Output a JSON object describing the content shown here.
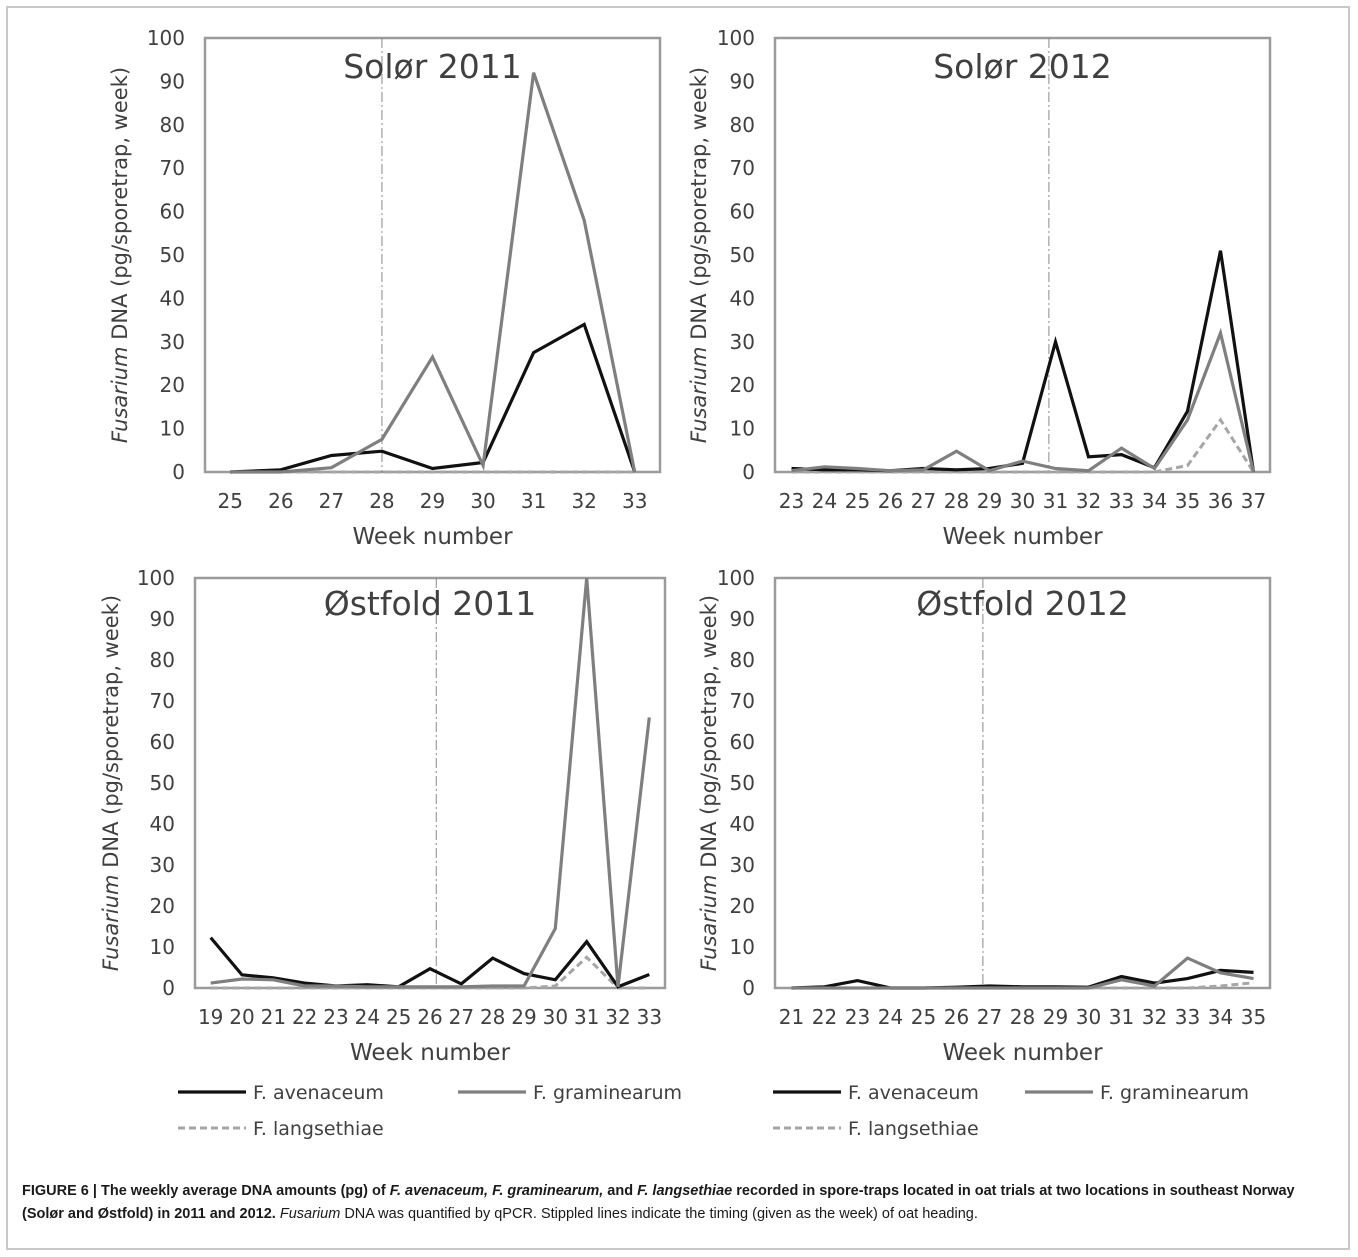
{
  "colors": {
    "avenaceum": "#111111",
    "graminearum": "#7f7f7f",
    "langsethiae": "#a6a6a6",
    "frame": "#9b9b9b",
    "text": "#404040"
  },
  "yaxis": {
    "label_italic": "Fusarium",
    "label_rest": " DNA (pg/sporetrap, week)"
  },
  "xaxis": {
    "label": "Week number"
  },
  "legend": [
    {
      "label": "F. avenaceum",
      "series": "avenaceum"
    },
    {
      "label": "F. graminearum",
      "series": "graminearum"
    },
    {
      "label": "F. langsethiae",
      "series": "langsethiae"
    }
  ],
  "chart_data": [
    {
      "type": "line",
      "title": "Solør 2011",
      "xlabel": "Week number",
      "ylabel": "Fusarium DNA (pg/sporetrap, week)",
      "ylim": [
        0,
        100
      ],
      "yticks": [
        0,
        10,
        20,
        30,
        40,
        50,
        60,
        70,
        80,
        90,
        100
      ],
      "categories": [
        "25",
        "26",
        "27",
        "28",
        "29",
        "30",
        "31",
        "32",
        "33"
      ],
      "heading_week": 28,
      "series": [
        {
          "name": "F. avenaceum",
          "key": "avenaceum",
          "values": [
            0,
            0.5,
            3.8,
            4.8,
            0.8,
            2.2,
            27.5,
            34,
            0
          ]
        },
        {
          "name": "F. graminearum",
          "key": "graminearum",
          "values": [
            0,
            0,
            1,
            7.5,
            26.5,
            1.5,
            92,
            58,
            0
          ]
        },
        {
          "name": "F. langsethiae",
          "key": "langsethiae",
          "values": [
            0,
            0,
            0,
            0,
            0,
            0,
            0,
            0,
            0
          ]
        }
      ]
    },
    {
      "type": "line",
      "title": "Solør 2012",
      "xlabel": "Week number",
      "ylabel": "Fusarium DNA (pg/sporetrap, week)",
      "ylim": [
        0,
        100
      ],
      "yticks": [
        0,
        10,
        20,
        30,
        40,
        50,
        60,
        70,
        80,
        90,
        100
      ],
      "categories": [
        "23",
        "24",
        "25",
        "26",
        "27",
        "28",
        "29",
        "30",
        "31",
        "32",
        "33",
        "34",
        "35",
        "36",
        "37"
      ],
      "heading_week": 30.8,
      "series": [
        {
          "name": "F. avenaceum",
          "key": "avenaceum",
          "values": [
            0.8,
            0.5,
            0.5,
            0.3,
            0.8,
            0.5,
            0.8,
            2,
            30,
            3.5,
            4,
            1,
            14,
            51,
            0
          ]
        },
        {
          "name": "F. graminearum",
          "key": "graminearum",
          "values": [
            0.3,
            1.2,
            0.8,
            0.3,
            0.5,
            4.8,
            0.3,
            2.5,
            0.8,
            0.3,
            5.5,
            0.8,
            12,
            32,
            0
          ]
        },
        {
          "name": "F. langsethiae",
          "key": "langsethiae",
          "values": [
            0,
            0,
            0,
            0,
            0,
            0,
            0,
            0,
            0,
            0,
            0,
            0,
            1.5,
            12,
            0
          ]
        }
      ]
    },
    {
      "type": "line",
      "title": "Østfold 2011",
      "xlabel": "Week number",
      "ylabel": "Fusarium DNA (pg/sporetrap, week)",
      "ylim": [
        0,
        100
      ],
      "yticks": [
        0,
        10,
        20,
        30,
        40,
        50,
        60,
        70,
        80,
        90,
        100
      ],
      "categories": [
        "19",
        "20",
        "21",
        "22",
        "23",
        "24",
        "25",
        "26",
        "27",
        "28",
        "29",
        "30",
        "31",
        "32",
        "33"
      ],
      "heading_week": 26.2,
      "series": [
        {
          "name": "F. avenaceum",
          "key": "avenaceum",
          "values": [
            12.3,
            3.2,
            2.5,
            1.2,
            0.5,
            0.8,
            0.3,
            4.7,
            1,
            7.3,
            3.5,
            2,
            11.3,
            0.3,
            3.3
          ]
        },
        {
          "name": "F. graminearum",
          "key": "graminearum",
          "values": [
            1.2,
            2.2,
            2,
            0.5,
            0.5,
            0.3,
            0.3,
            0.3,
            0.3,
            0.5,
            0.5,
            14.5,
            100,
            0.3,
            66
          ]
        },
        {
          "name": "F. langsethiae",
          "key": "langsethiae",
          "values": [
            0,
            0,
            0,
            0,
            0,
            0,
            0,
            0,
            0,
            0,
            0,
            0.5,
            7.5,
            0,
            0
          ]
        }
      ]
    },
    {
      "type": "line",
      "title": "Østfold 2012",
      "xlabel": "Week number",
      "ylabel": "Fusarium DNA (pg/sporetrap, week)",
      "ylim": [
        0,
        100
      ],
      "yticks": [
        0,
        10,
        20,
        30,
        40,
        50,
        60,
        70,
        80,
        90,
        100
      ],
      "categories": [
        "21",
        "22",
        "23",
        "24",
        "25",
        "26",
        "27",
        "28",
        "29",
        "30",
        "31",
        "32",
        "33",
        "34",
        "35"
      ],
      "heading_week": 26.8,
      "series": [
        {
          "name": "F. avenaceum",
          "key": "avenaceum",
          "values": [
            0,
            0.3,
            1.8,
            0,
            0,
            0.2,
            0.5,
            0.3,
            0.3,
            0.2,
            2.8,
            1.2,
            2.3,
            4.3,
            3.8
          ]
        },
        {
          "name": "F. graminearum",
          "key": "graminearum",
          "values": [
            0,
            0,
            0,
            0,
            0,
            0,
            0,
            0,
            0,
            0,
            2,
            0.5,
            7.3,
            3.7,
            2.3
          ]
        },
        {
          "name": "F. langsethiae",
          "key": "langsethiae",
          "values": [
            0,
            0,
            0,
            0,
            0,
            0,
            0,
            0,
            0,
            0,
            0,
            0,
            0,
            0.5,
            1.3
          ]
        }
      ]
    }
  ],
  "caption": {
    "lead": "FIGURE 6 | The weekly average DNA amounts (pg) of ",
    "sp1": "F. avenaceum, F. graminearum,",
    "mid": " and ",
    "sp2": "F. langsethiae",
    "lead_end": " recorded in spore-traps located in oat trials at two locations in southeast Norway (Solør and Østfold) in 2011 and 2012.",
    "ital": "Fusarium",
    "rest": " DNA was quantified by qPCR. Stippled lines indicate the timing (given as the week) of oat heading."
  }
}
